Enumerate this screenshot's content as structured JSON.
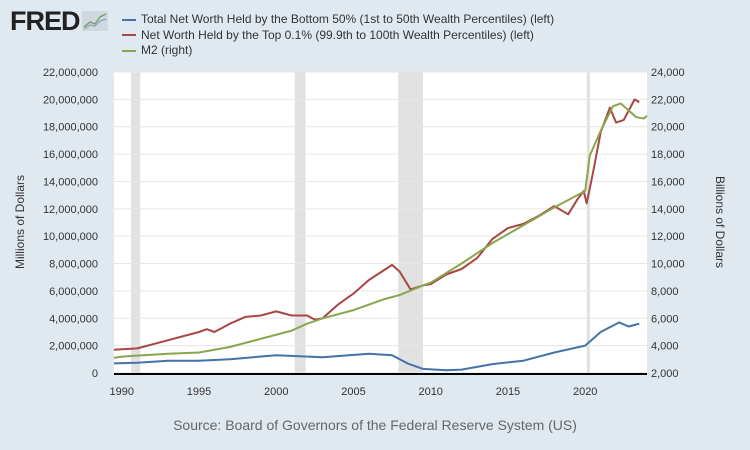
{
  "logo": "FRED",
  "source": "Source: Board of Governors of the Federal Reserve System (US)",
  "chart_data": {
    "type": "line",
    "grid": true,
    "legend_placement": "top",
    "left_axis": {
      "label": "Millions of Dollars",
      "range": [
        0,
        22000000
      ],
      "ticks": [
        "0",
        "2,000,000",
        "4,000,000",
        "6,000,000",
        "8,000,000",
        "10,000,000",
        "12,000,000",
        "14,000,000",
        "16,000,000",
        "18,000,000",
        "20,000,000",
        "22,000,000"
      ]
    },
    "right_axis": {
      "label": "Billions of Dollars",
      "range": [
        2000,
        24000
      ],
      "ticks": [
        "2,000",
        "4,000",
        "6,000",
        "8,000",
        "10,000",
        "12,000",
        "14,000",
        "16,000",
        "18,000",
        "20,000",
        "22,000",
        "24,000"
      ]
    },
    "x_axis": {
      "range": [
        1989.5,
        2024
      ],
      "ticks": [
        "1990",
        "1995",
        "2000",
        "2005",
        "2010",
        "2015",
        "2020"
      ]
    },
    "recessions": [
      [
        1990.6,
        1991.2
      ],
      [
        2001.2,
        2001.9
      ],
      [
        2007.9,
        2009.5
      ],
      [
        2020.1,
        2020.3
      ]
    ],
    "series": [
      {
        "name": "Total Net Worth Held by the Bottom 50% (1st to 50th Wealth Percentiles) (left)",
        "axis": "left",
        "color": "#4572a7",
        "x": [
          1989.5,
          1991,
          1993,
          1995,
          1997,
          2000,
          2003,
          2006,
          2007.5,
          2008.5,
          2009.5,
          2011,
          2012,
          2014,
          2016,
          2018,
          2020,
          2021,
          2022.2,
          2022.8,
          2023.5
        ],
        "y": [
          700000,
          750000,
          900000,
          900000,
          1000000,
          1300000,
          1150000,
          1400000,
          1300000,
          700000,
          300000,
          200000,
          250000,
          650000,
          900000,
          1500000,
          2000000,
          3000000,
          3700000,
          3400000,
          3600000
        ]
      },
      {
        "name": "Net Worth Held by the Top 0.1% (99.9th to 100th Wealth Percentiles) (left)",
        "axis": "left",
        "color": "#aa4643",
        "x": [
          1989.5,
          1991,
          1992,
          1995,
          1995.5,
          1996,
          1997,
          1998,
          1999,
          2000,
          2001,
          2002,
          2002.5,
          2003,
          2004,
          2005,
          2006,
          2007.5,
          2008,
          2008.7,
          2009.5,
          2010,
          2011,
          2012,
          2013,
          2014,
          2015,
          2016,
          2017,
          2018,
          2018.9,
          2019.5,
          2019.9,
          2020.1,
          2020.5,
          2021,
          2021.6,
          2022,
          2022.5,
          2023.2,
          2023.5
        ],
        "y": [
          1700000,
          1800000,
          2100000,
          3000000,
          3200000,
          3000000,
          3600000,
          4100000,
          4200000,
          4500000,
          4200000,
          4200000,
          3900000,
          4000000,
          5000000,
          5800000,
          6800000,
          7900000,
          7400000,
          6100000,
          6400000,
          6500000,
          7200000,
          7600000,
          8400000,
          9800000,
          10600000,
          10900000,
          11500000,
          12200000,
          11600000,
          12700000,
          13300000,
          12400000,
          14600000,
          17600000,
          19400000,
          18300000,
          18500000,
          20000000,
          19800000
        ]
      },
      {
        "name": "M2 (right)",
        "axis": "right",
        "color": "#89a54e",
        "x": [
          1989.5,
          1990,
          1993,
          1995,
          1997,
          1999,
          2001,
          2002,
          2003,
          2005,
          2007,
          2008,
          2009.5,
          2010,
          2012,
          2014,
          2016,
          2018,
          2020,
          2020.3,
          2021,
          2021.8,
          2022.3,
          2022.8,
          2023.3,
          2023.8,
          2024
        ],
        "y": [
          3100,
          3200,
          3400,
          3500,
          3900,
          4500,
          5100,
          5600,
          6000,
          6600,
          7400,
          7700,
          8400,
          8600,
          10000,
          11500,
          12800,
          14100,
          15300,
          17900,
          19700,
          21500,
          21700,
          21200,
          20700,
          20600,
          20800
        ]
      }
    ]
  }
}
